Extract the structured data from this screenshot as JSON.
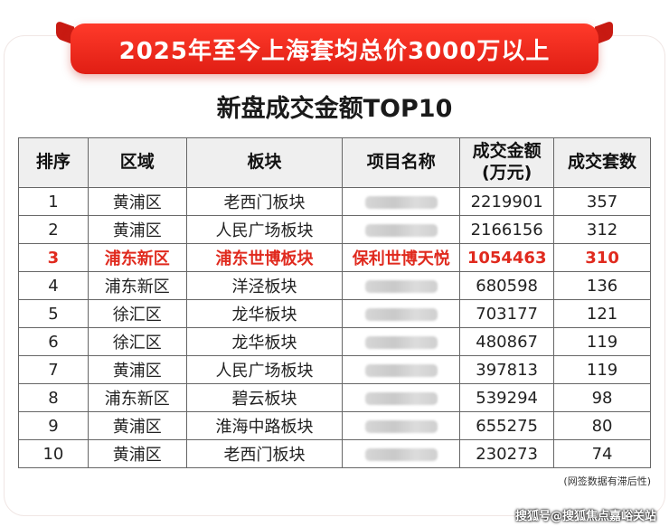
{
  "banner": {
    "title": "2025年至今上海套均总价3000万以上"
  },
  "subtitle": "新盘成交金额TOP10",
  "table": {
    "headers": [
      "排序",
      "区域",
      "板块",
      "项目名称",
      "成交金额\n(万元)",
      "成交套数"
    ],
    "rows": [
      {
        "rank": "1",
        "district": "黄浦区",
        "block": "老西门板块",
        "project": "",
        "amount": "2219901",
        "units": "357"
      },
      {
        "rank": "2",
        "district": "黄浦区",
        "block": "人民广场板块",
        "project": "",
        "amount": "2166156",
        "units": "312"
      },
      {
        "rank": "3",
        "district": "浦东新区",
        "block": "浦东世博板块",
        "project": "保利世博天悦",
        "amount": "1054463",
        "units": "310"
      },
      {
        "rank": "4",
        "district": "浦东新区",
        "block": "洋泾板块",
        "project": "",
        "amount": "680598",
        "units": "136"
      },
      {
        "rank": "5",
        "district": "徐汇区",
        "block": "龙华板块",
        "project": "",
        "amount": "703177",
        "units": "121"
      },
      {
        "rank": "6",
        "district": "徐汇区",
        "block": "龙华板块",
        "project": "",
        "amount": "480867",
        "units": "119"
      },
      {
        "rank": "7",
        "district": "黄浦区",
        "block": "人民广场板块",
        "project": "",
        "amount": "397813",
        "units": "119"
      },
      {
        "rank": "8",
        "district": "浦东新区",
        "block": "碧云板块",
        "project": "",
        "amount": "539294",
        "units": "98"
      },
      {
        "rank": "9",
        "district": "黄浦区",
        "block": "淮海中路板块",
        "project": "",
        "amount": "655275",
        "units": "80"
      },
      {
        "rank": "10",
        "district": "黄浦区",
        "block": "老西门板块",
        "project": "",
        "amount": "230273",
        "units": "74"
      }
    ],
    "highlight_row": 2,
    "highlight_color": "#e02a1e"
  },
  "note": "(网签数据有滞后性)",
  "watermark": "搜狐号@搜狐焦点嘉峪关站",
  "colors": {
    "banner": "#e62a1e",
    "header_bg": "#efefef"
  }
}
